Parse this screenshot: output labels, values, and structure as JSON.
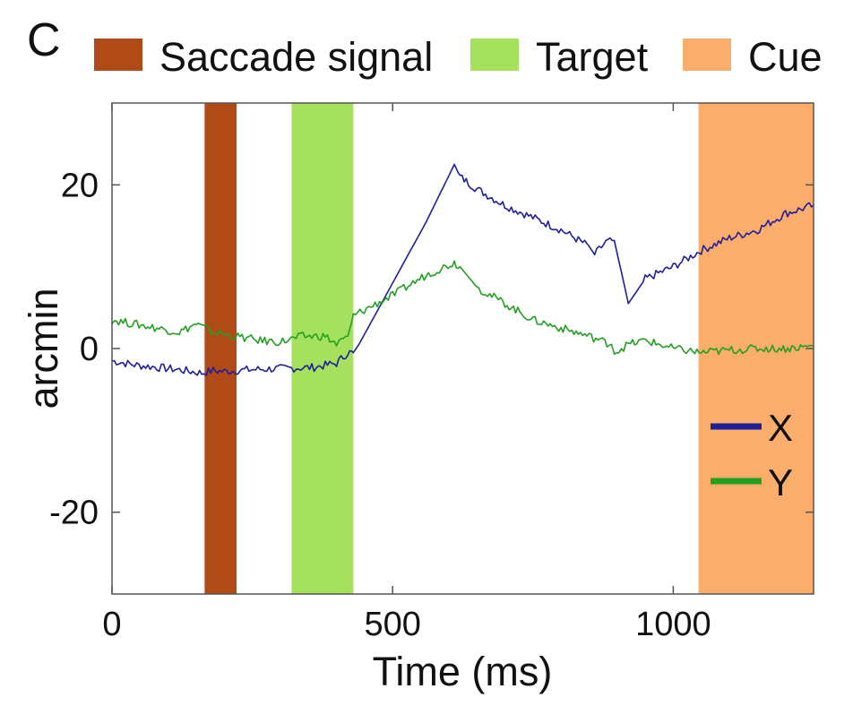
{
  "panel_label": "C",
  "legend_top": [
    {
      "label": "Saccade signal",
      "color": "#b04a17"
    },
    {
      "label": "Target",
      "color": "#a6e15e"
    },
    {
      "label": "Cue",
      "color": "#fbad6b"
    }
  ],
  "chart_data": {
    "type": "line",
    "title": "",
    "xlabel": "Time (ms)",
    "ylabel": "arcmin",
    "xlim": [
      0,
      1250
    ],
    "ylim": [
      -30,
      30
    ],
    "xticks": [
      0,
      500,
      1000
    ],
    "yticks": [
      -20,
      0,
      20
    ],
    "xtick_labels": [
      "0",
      "500",
      "1000"
    ],
    "ytick_labels": [
      "-20",
      "0",
      "20"
    ],
    "grid": false,
    "legend_position": "lower-right",
    "shaded_intervals": [
      {
        "name": "Saccade signal",
        "x_start": 165,
        "x_end": 222,
        "color": "#b04a17"
      },
      {
        "name": "Target",
        "x_start": 320,
        "x_end": 430,
        "color": "#a6e15e"
      },
      {
        "name": "Cue",
        "x_start": 1045,
        "x_end": 1250,
        "color": "#fbad6b"
      }
    ],
    "series": [
      {
        "name": "X",
        "color": "#1f1f9a",
        "x": [
          0,
          40,
          80,
          120,
          160,
          180,
          200,
          240,
          280,
          320,
          360,
          400,
          420,
          430,
          440,
          500,
          560,
          610,
          620,
          650,
          700,
          750,
          800,
          850,
          860,
          880,
          895,
          920,
          950,
          1000,
          1050,
          1100,
          1150,
          1200,
          1250
        ],
        "y": [
          -1.5,
          -2.0,
          -2.3,
          -2.6,
          -3.0,
          -2.7,
          -2.8,
          -2.6,
          -2.5,
          -2.4,
          -2.3,
          -1.8,
          -0.5,
          -0.5,
          0.5,
          8.0,
          15.5,
          22.5,
          21.0,
          19.5,
          17.5,
          16.0,
          14.5,
          12.5,
          11.5,
          13.0,
          13.2,
          5.5,
          8.5,
          10.0,
          12.0,
          13.5,
          14.5,
          16.5,
          17.5
        ]
      },
      {
        "name": "Y",
        "color": "#22a022",
        "x": [
          0,
          40,
          80,
          120,
          150,
          180,
          220,
          260,
          300,
          340,
          380,
          400,
          420,
          430,
          500,
          560,
          610,
          620,
          650,
          700,
          750,
          800,
          850,
          890,
          895,
          920,
          950,
          1000,
          1050,
          1100,
          1150,
          1200,
          1250
        ],
        "y": [
          3.5,
          3.0,
          2.5,
          2.0,
          3.0,
          2.0,
          1.5,
          1.0,
          0.8,
          1.5,
          1.5,
          0.5,
          1.5,
          4.0,
          6.5,
          9.0,
          10.5,
          10.0,
          7.5,
          5.5,
          3.5,
          2.5,
          1.5,
          0.5,
          -0.5,
          0.5,
          1.0,
          0.0,
          -0.5,
          -0.2,
          0.0,
          0.0,
          0.3
        ]
      }
    ]
  }
}
